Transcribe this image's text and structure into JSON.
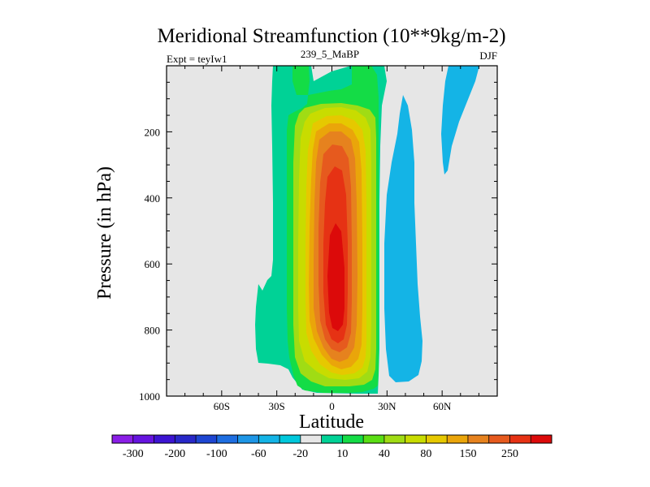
{
  "chart_data": {
    "type": "contour",
    "title": "Meridional Streamfunction (10**9kg/m-2)",
    "subtitle_left": "Expt = teyIw1",
    "subtitle_center": "239_5_MaBP",
    "subtitle_right": "DJF",
    "xlabel": "Latitude",
    "ylabel": "Pressure (in hPa)",
    "xlim": [
      -90,
      90
    ],
    "ylim": [
      1000,
      0
    ],
    "x_ticks": [
      {
        "value": -60,
        "label": "60S"
      },
      {
        "value": -30,
        "label": "30S"
      },
      {
        "value": 0,
        "label": "0"
      },
      {
        "value": 30,
        "label": "30N"
      },
      {
        "value": 60,
        "label": "60N"
      }
    ],
    "y_ticks": [
      {
        "value": 200,
        "label": "200"
      },
      {
        "value": 400,
        "label": "400"
      },
      {
        "value": 600,
        "label": "600"
      },
      {
        "value": 800,
        "label": "800"
      },
      {
        "value": 1000,
        "label": "1000"
      }
    ],
    "colorbar": {
      "colors": [
        "#8a1ee6",
        "#6614e0",
        "#3c14d2",
        "#2828c8",
        "#1e46d2",
        "#1e6ee1",
        "#1e96e6",
        "#14b4e6",
        "#00c8dc",
        "#e6e6e6",
        "#00d296",
        "#14dc46",
        "#5ade14",
        "#a0dc14",
        "#c8dc00",
        "#e6c800",
        "#eaa50a",
        "#e6821e",
        "#e65a1e",
        "#e63214",
        "#dc0a0a"
      ],
      "tick_labels": [
        "-300",
        "-200",
        "-100",
        "-60",
        "-20",
        "10",
        "40",
        "80",
        "150",
        "250"
      ]
    },
    "features": [
      {
        "name": "Southern Hemisphere Hadley cell (positive)",
        "center_lat": 5,
        "center_pressure": 700,
        "max_level": 250
      },
      {
        "name": "Northern Hemisphere Hadley cell (negative)",
        "center_lat": 40,
        "center_pressure": 750,
        "min_level": -20
      },
      {
        "name": "Northern high-latitude cell (negative)",
        "center_lat": 68,
        "center_pressure": 150,
        "min_level": -20
      }
    ]
  }
}
